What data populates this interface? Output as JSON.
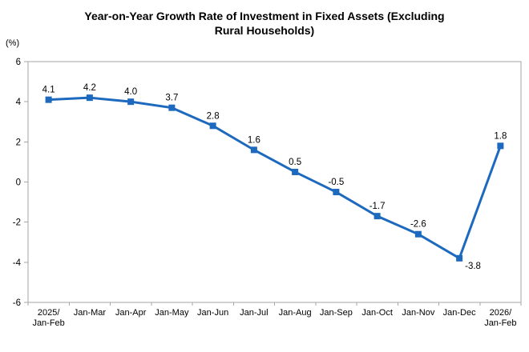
{
  "chart_data": {
    "type": "line",
    "title": "Year-on-Year Growth Rate of Investment in Fixed Assets (Excluding Rural Households)",
    "title_lines": [
      "Year-on-Year Growth Rate of Investment in Fixed Assets (Excluding",
      "Rural Households)"
    ],
    "unit_label": "(%)",
    "categories": [
      "2025/\nJan-Feb",
      "Jan-Mar",
      "Jan-Apr",
      "Jan-May",
      "Jan-Jun",
      "Jan-Jul",
      "Jan-Aug",
      "Jan-Sep",
      "Jan-Oct",
      "Jan-Nov",
      "Jan-Dec",
      "2026/\nJan-Feb"
    ],
    "values": [
      4.1,
      4.2,
      4.0,
      3.7,
      2.8,
      1.6,
      0.5,
      -0.5,
      -1.7,
      -2.6,
      -3.8,
      1.8
    ],
    "value_labels": [
      "4.1",
      "4.2",
      "4.0",
      "3.7",
      "2.8",
      "1.6",
      "0.5",
      "-0.5",
      "-1.7",
      "-2.6",
      "-3.8",
      "1.8"
    ],
    "ylim": [
      -6,
      6
    ],
    "yticks": [
      6,
      4,
      2,
      0,
      -2,
      -4,
      -6
    ],
    "grid": false,
    "legend": "none",
    "marker": "square",
    "colors": {
      "line": "#1c69be",
      "marker": "#1c69be",
      "axis": "#a6a6a6",
      "text": "#000000"
    }
  }
}
